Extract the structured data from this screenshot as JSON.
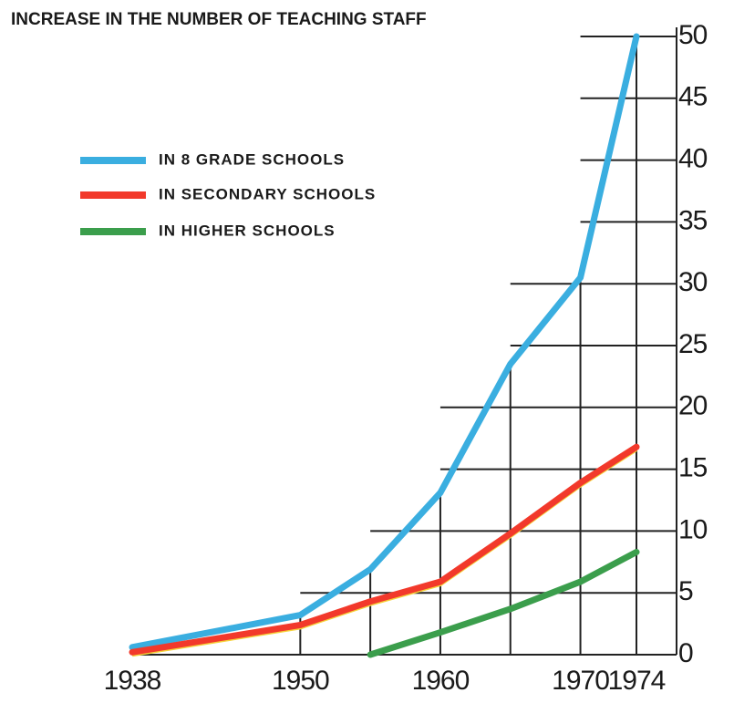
{
  "chart_data": {
    "type": "line",
    "title": "INCREASE IN THE NUMBER OF TEACHING STAFF",
    "x": [
      1938,
      1950,
      1955,
      1960,
      1965,
      1970,
      1974
    ],
    "series": [
      {
        "name": "IN 8 GRADE SCHOOLS",
        "color": "#3aaee0",
        "values": [
          0.6,
          3.2,
          6.9,
          13.1,
          23.5,
          30.5,
          50
        ]
      },
      {
        "name": "IN SECONDARY SCHOOLS",
        "color": "#f2392b",
        "values": [
          0.2,
          2.4,
          4.3,
          5.9,
          9.8,
          13.9,
          16.8
        ]
      },
      {
        "name": "IN HIGHER SCHOOLS",
        "color": "#3b9e4c",
        "values": [
          null,
          null,
          0,
          1.8,
          3.7,
          5.9,
          8.3
        ]
      }
    ],
    "xlim": [
      1938,
      1974
    ],
    "xticks": [
      1938,
      1950,
      1960,
      1970,
      1974
    ],
    "ylim": [
      0,
      50
    ],
    "yticks": [
      0,
      5,
      10,
      15,
      20,
      25,
      30,
      35,
      40,
      45,
      50
    ],
    "grid": true
  }
}
